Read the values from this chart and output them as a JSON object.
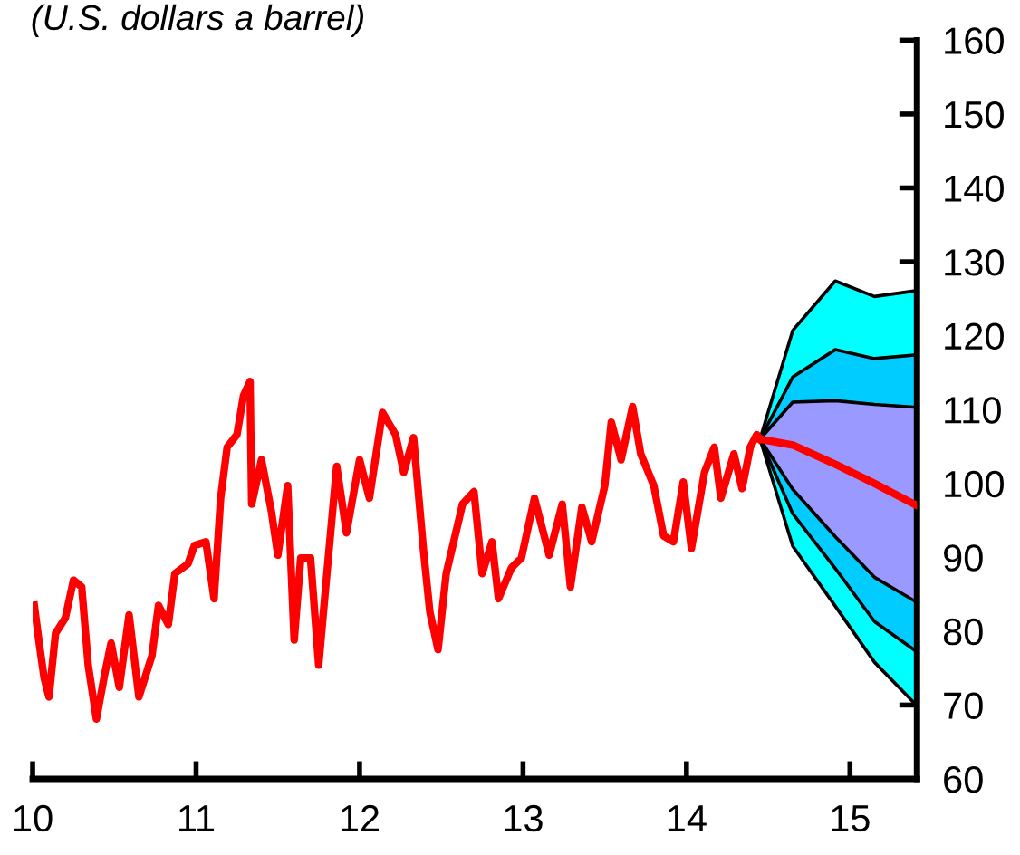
{
  "chart_data": {
    "type": "line",
    "subtitle": "(U.S. dollars a barrel)",
    "xlim": [
      10,
      15.41
    ],
    "xticks": [
      10,
      11,
      12,
      13,
      14,
      15
    ],
    "ylim": [
      60,
      160
    ],
    "yticks": [
      60,
      70,
      80,
      90,
      100,
      110,
      120,
      130,
      140,
      150,
      160
    ],
    "grid": false,
    "legend": false,
    "series": [
      {
        "type": "area",
        "color": "#00ffff",
        "x": [
          14.45,
          14.65,
          14.91,
          15.15,
          15.41
        ],
        "values": [
          null,
          null,
          null,
          null,
          null
        ],
        "lower": [
          106,
          91.5,
          83.4,
          75.8,
          69.9
        ],
        "upper": [
          106,
          120.7,
          127.4,
          125.3,
          126.1
        ]
      },
      {
        "type": "area",
        "color": "#00ccff",
        "x": [
          14.45,
          14.65,
          14.91,
          15.15,
          15.41
        ],
        "values": [
          null,
          null,
          null,
          null,
          null
        ],
        "lower": [
          106,
          95.9,
          88.5,
          81.3,
          77.2
        ],
        "upper": [
          106,
          114.4,
          118.1,
          116.9,
          117.4
        ]
      },
      {
        "type": "area",
        "color": "#9999ff",
        "x": [
          14.45,
          14.65,
          14.91,
          15.15,
          15.41
        ],
        "values": [
          null,
          null,
          null,
          null,
          null
        ],
        "lower": [
          106,
          99.2,
          92.8,
          87.3,
          83.9
        ],
        "upper": [
          106,
          111,
          111.2,
          110.7,
          110.3
        ]
      },
      {
        "type": "line",
        "color": "#ff0000",
        "x": [
          14.45,
          14.65,
          14.91,
          15.15,
          15.41
        ],
        "values": [
          106,
          105.2,
          102.6,
          100,
          97
        ]
      },
      {
        "color": "#ff0000",
        "x": [
          10.01,
          10.04,
          10.07,
          10.1,
          10.14,
          10.2,
          10.25,
          10.3,
          10.34,
          10.39,
          10.44,
          10.48,
          10.53,
          10.59,
          10.65,
          10.73,
          10.77,
          10.83,
          10.87,
          10.95,
          10.99,
          11.06,
          11.11,
          11.15,
          11.19,
          11.25,
          11.29,
          11.33,
          11.34,
          11.4,
          11.46,
          11.5,
          11.56,
          11.6,
          11.64,
          11.7,
          11.75,
          11.8,
          11.86,
          11.92,
          12.0,
          12.06,
          12.14,
          12.22,
          12.27,
          12.33,
          12.39,
          12.43,
          12.48,
          12.53,
          12.63,
          12.7,
          12.75,
          12.81,
          12.85,
          12.93,
          12.99,
          13.07,
          13.16,
          13.24,
          13.29,
          13.36,
          13.42,
          13.5,
          13.54,
          13.6,
          13.67,
          13.72,
          13.8,
          13.86,
          13.92,
          13.98,
          14.03,
          14.11,
          14.17,
          14.21,
          14.29,
          14.34,
          14.39,
          14.43,
          14.45
        ],
        "values": [
          83.5,
          78.4,
          73.7,
          71.1,
          79.7,
          81.8,
          86.9,
          86,
          75.4,
          68.1,
          74.1,
          78.4,
          72.4,
          82.2,
          71.1,
          76.7,
          83.5,
          80.9,
          87.8,
          89.1,
          91.6,
          92.1,
          84.4,
          98,
          104.9,
          106.6,
          111.9,
          113.8,
          97.2,
          103.2,
          96.3,
          90.3,
          99.7,
          78.8,
          89.9,
          89.9,
          75.4,
          87.8,
          102.3,
          93.3,
          103.2,
          98,
          109.6,
          106.6,
          101.5,
          106.2,
          91.2,
          82.6,
          77.5,
          87.8,
          97.2,
          98.9,
          87.8,
          92.1,
          84.4,
          88.6,
          89.9,
          98,
          90.3,
          97.2,
          86,
          96.8,
          92.1,
          99.7,
          108.3,
          103.2,
          110.4,
          104,
          99.7,
          92.9,
          92.1,
          100.2,
          91.2,
          101.5,
          104.9,
          98,
          104,
          99.3,
          104.9,
          106.6,
          106
        ]
      }
    ]
  }
}
